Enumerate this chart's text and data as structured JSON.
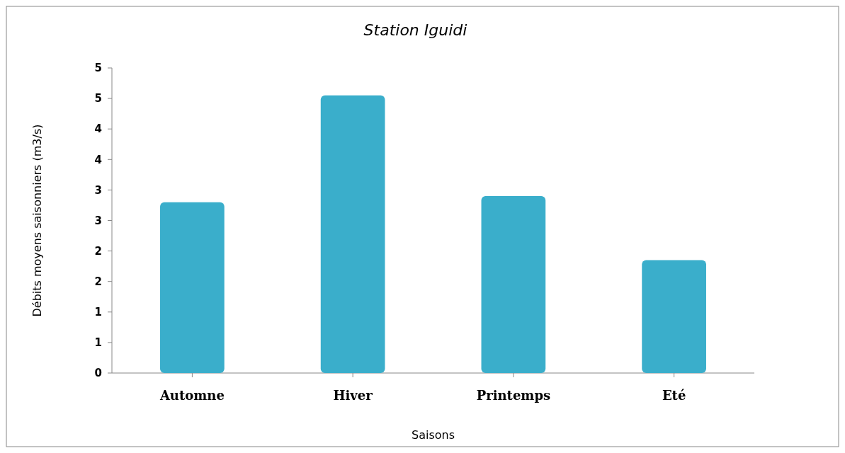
{
  "chart_data": {
    "type": "bar",
    "title": "Station Iguidi",
    "xlabel": "Saisons",
    "ylabel": "Débits moyens saisonniers (m3/s)",
    "categories": [
      "Automne",
      "Hiver",
      "Printemps",
      "Eté"
    ],
    "values": [
      2.8,
      4.55,
      2.9,
      1.85
    ],
    "color": "#3aaecb",
    "ylim": [
      0,
      5
    ],
    "yticks": [
      0,
      {
        "value": 0.5,
        "label": "1"
      },
      1,
      {
        "value": 1.5,
        "label": "2"
      },
      2,
      {
        "value": 2.5,
        "label": "3"
      },
      3,
      {
        "value": 3.5,
        "label": "4"
      },
      4,
      {
        "value": 4.5,
        "label": "5"
      },
      5
    ],
    "grid": false
  }
}
